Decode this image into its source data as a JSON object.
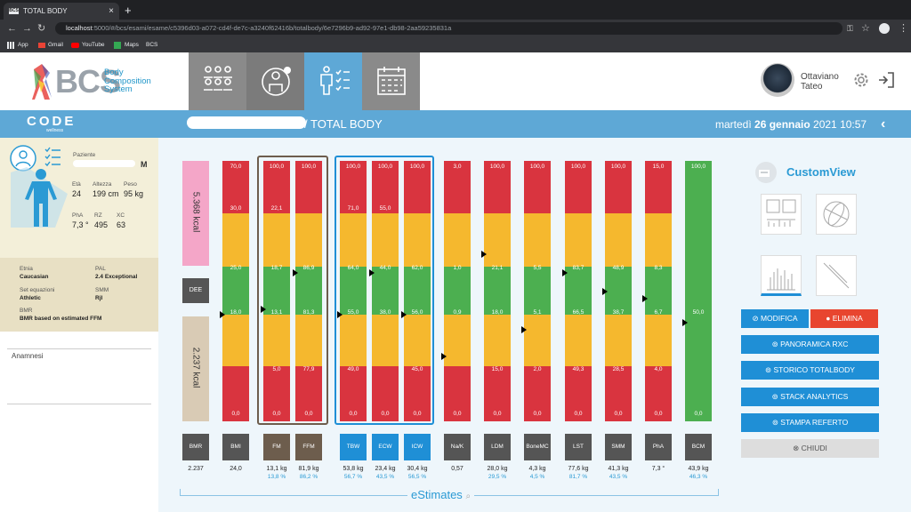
{
  "browser": {
    "tab_title": "TOTAL BODY",
    "fav": "BCS",
    "new_tab": "+",
    "url_host": "localhost",
    "url_rest": ":5000/#/bcs/esami/esame/c5396d03-a072-cd4f-de7c-a3240f62416b/totalbody/6e7296b9-ad92-97e1-db98-2aa59235831a",
    "bookmarks": [
      "App",
      "Gmail",
      "YouTube",
      "Maps",
      "BCS"
    ]
  },
  "header": {
    "logo_text": "BCS",
    "logo_sub": [
      "Body",
      "Composition",
      "System"
    ],
    "user_first": "Ottaviano",
    "user_last": "Tateo"
  },
  "band": {
    "brand": "CODE",
    "brand_sub": "wellness",
    "title": "/ TOTAL BODY",
    "date_prefix": "martedì ",
    "date_bold": "26 gennaio",
    "date_suffix": " 2021 10:57"
  },
  "patient": {
    "label_patient": "Paziente",
    "sex": "M",
    "eta_label": "Età",
    "eta": "24",
    "alt_label": "Altezza",
    "alt": "199 cm",
    "peso_label": "Peso",
    "peso": "95 kg",
    "pha_label": "PhA",
    "pha": "7,3 °",
    "rz_label": "RZ",
    "rz": "495",
    "xc_label": "XC",
    "xc": "63",
    "etnia_label": "Etnia",
    "etnia": "Caucasian",
    "pal_label": "PAL",
    "pal": "2.4 Exceptional",
    "set_label": "Set equazioni",
    "set": "Athletic",
    "smm_label": "SMM",
    "smm": "Rjl",
    "bmr_label": "BMR",
    "bmr": "BMR based on estimated FFM",
    "anamnesi": "Anamnesi"
  },
  "energy": {
    "top_kcal": "5.368 kcal",
    "dee": "DEE",
    "bottom_kcal": "2.237 kcal",
    "bmr_label": "BMR",
    "bmr_value": "2.237"
  },
  "columns": [
    {
      "label": "BMI",
      "kg": "24,0",
      "pct": "",
      "ticks": [
        "70,0",
        "30,0",
        "25,0",
        "18,0",
        "0,0"
      ],
      "ptr": 0.59
    },
    {
      "label": "FM",
      "kg": "13,1 kg",
      "pct": "13,8 %",
      "ticks": [
        "100,0",
        "22,1",
        "18,7",
        "13,1",
        "5,0",
        "0,0"
      ],
      "ptr": 0.57,
      "group": "brown"
    },
    {
      "label": "FFM",
      "kg": "81,9 kg",
      "pct": "86,2 %",
      "ticks": [
        "100,0",
        "",
        "86,9",
        "81,3",
        "77,9",
        "0,0"
      ],
      "ptr": 0.43,
      "group": "brown"
    },
    {
      "label": "TBW",
      "kg": "53,8 kg",
      "pct": "56,7 %",
      "ticks": [
        "100,0",
        "71,0",
        "64,0",
        "55,0",
        "49,0",
        "0,0"
      ],
      "ptr": 0.59,
      "group": "blue"
    },
    {
      "label": "ECW",
      "kg": "23,4 kg",
      "pct": "43,5 %",
      "ticks": [
        "100,0",
        "55,0",
        "44,0",
        "38,0",
        "",
        "0,0"
      ],
      "ptr": 0.43,
      "group": "blue"
    },
    {
      "label": "ICW",
      "kg": "30,4 kg",
      "pct": "56,5 %",
      "ticks": [
        "100,0",
        "",
        "62,0",
        "56,0",
        "45,0",
        "0,0"
      ],
      "ptr": 0.59,
      "group": "blue"
    },
    {
      "label": "Na/K",
      "kg": "0,57",
      "pct": "",
      "ticks": [
        "3,0",
        "",
        "1,0",
        "0,9",
        "",
        "0,0"
      ],
      "ptr": 0.75
    },
    {
      "label": "LDM",
      "kg": "28,0 kg",
      "pct": "29,5 %",
      "ticks": [
        "100,0",
        "",
        "21,1",
        "18,0",
        "15,0",
        "0,0"
      ],
      "ptr": 0.36
    },
    {
      "label": "BoneMC",
      "kg": "4,3 kg",
      "pct": "4,5 %",
      "ticks": [
        "100,0",
        "",
        "5,5",
        "5,1",
        "2,0",
        "0,0"
      ],
      "ptr": 0.65
    },
    {
      "label": "LST",
      "kg": "77,6 kg",
      "pct": "81,7 %",
      "ticks": [
        "100,0",
        "",
        "83,7",
        "66,5",
        "49,3",
        "0,0"
      ],
      "ptr": 0.43
    },
    {
      "label": "SMM",
      "kg": "41,3 kg",
      "pct": "43,5 %",
      "ticks": [
        "100,0",
        "",
        "48,9",
        "38,7",
        "28,5",
        "0,0"
      ],
      "ptr": 0.5
    },
    {
      "label": "PhA",
      "kg": "7,3 °",
      "pct": "",
      "ticks": [
        "15,0",
        "",
        "8,3",
        "6,7",
        "4,0",
        "0,0"
      ],
      "ptr": 0.53
    },
    {
      "label": "BCM",
      "kg": "43,9 kg",
      "pct": "46,3 %",
      "ticks": [
        "100,0",
        "",
        "",
        "50,0",
        "",
        "0,0"
      ],
      "ptr": 0.62,
      "allgreen": true
    }
  ],
  "estimates": "eStimates",
  "right": {
    "title": "CustomView",
    "modifica": "MODIFICA",
    "elimina": "ELIMINA",
    "btns": [
      "PANORAMICA RXC",
      "STORICO TOTALBODY",
      "STACK ANALYTICS",
      "STAMPA REFERTO"
    ],
    "chiudi": "CHIUDI"
  },
  "colors": {
    "red": "#d9343f",
    "yellow": "#f5b82e",
    "green": "#4caf50",
    "blue": "#1f8fd6",
    "brown": "#6d5d4d"
  }
}
